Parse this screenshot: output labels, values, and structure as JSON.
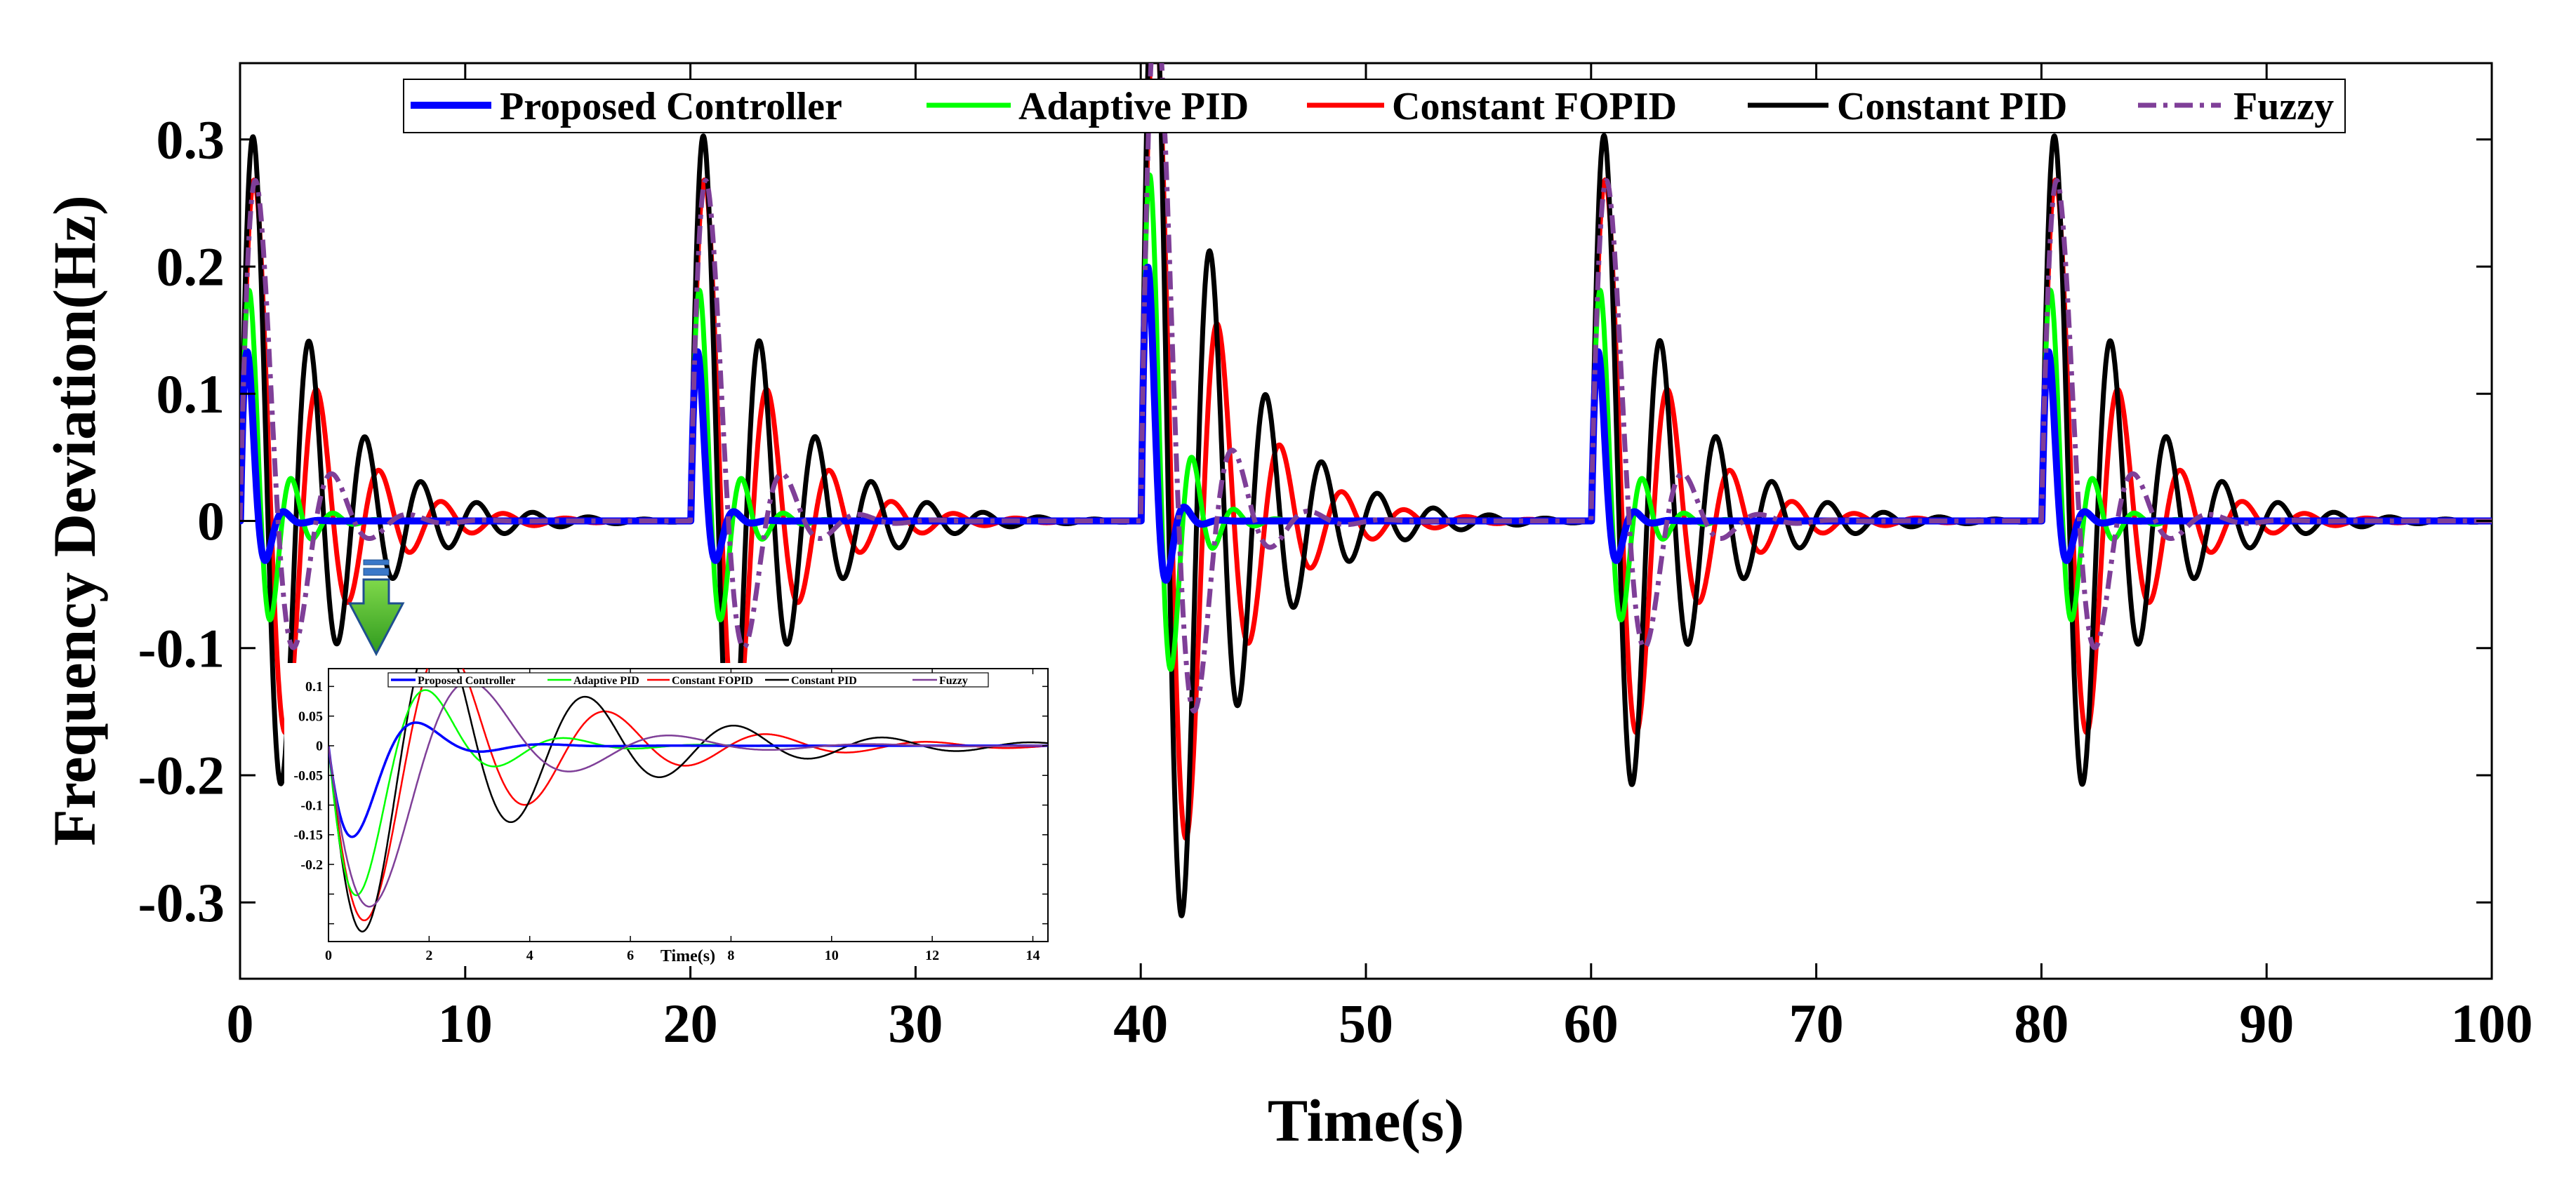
{
  "chart_data": {
    "type": "line",
    "main": {
      "xlabel": "Time(s)",
      "ylabel": "Frequency Deviation(Hz)",
      "xlim": [
        0,
        100
      ],
      "ylim": [
        -0.36,
        0.36
      ],
      "xticks": [
        0,
        10,
        20,
        30,
        40,
        50,
        60,
        70,
        80,
        90,
        100
      ],
      "yticks": [
        -0.3,
        -0.2,
        -0.1,
        0,
        0.1,
        0.2,
        0.3
      ],
      "xtick_labels": [
        "0",
        "10",
        "20",
        "30",
        "40",
        "50",
        "60",
        "70",
        "80",
        "90",
        "100"
      ],
      "ytick_labels": [
        "-0.3",
        "-0.2",
        "-0.1",
        "0",
        "0.1",
        "0.2",
        "0.3"
      ],
      "grid": false,
      "legend_position": "top-center",
      "events": [
        {
          "t": 0,
          "dir": -1
        },
        {
          "t": 20,
          "dir": 1
        },
        {
          "t": 40,
          "dir": -1.5
        },
        {
          "t": 60,
          "dir": 1
        },
        {
          "t": 80,
          "dir": -1
        }
      ],
      "series": [
        {
          "name": "Proposed Controller",
          "color": "#0000ff",
          "dash": "solid",
          "peak": 0.12,
          "omega": 4.3,
          "zeta": 0.42,
          "step_offset": 0.02
        },
        {
          "name": "Adaptive PID",
          "color": "#00ff00",
          "dash": "solid",
          "peak": 0.175,
          "omega": 3.5,
          "zeta": 0.26,
          "step_offset": 0.012
        },
        {
          "name": "Constant FOPID",
          "color": "#ff0000",
          "dash": "solid",
          "peak": 0.265,
          "omega": 2.3,
          "zeta": 0.15,
          "step_offset": 0.0
        },
        {
          "name": "Constant PID",
          "color": "#000000",
          "dash": "solid",
          "peak": 0.3,
          "omega": 2.55,
          "zeta": 0.12,
          "step_offset": 0.0
        },
        {
          "name": "Fuzzy",
          "color": "#7f3f98",
          "dash": "dashdot",
          "peak": 0.255,
          "omega": 1.95,
          "zeta": 0.3,
          "step_offset": 0.0
        }
      ]
    },
    "inset": {
      "xlabel": "Time(s)",
      "xlim": [
        0,
        14.3
      ],
      "ylim": [
        -0.33,
        0.13
      ],
      "xticks": [
        0,
        2,
        4,
        6,
        8,
        10,
        12,
        14
      ],
      "yticks": [
        -0.3,
        -0.25,
        -0.2,
        -0.15,
        -0.1,
        -0.05,
        0,
        0.05,
        0.1
      ],
      "xtick_labels": [
        "0",
        "2",
        "4",
        "6",
        "8",
        "10",
        "12",
        "14"
      ],
      "ytick_labels": [
        "",
        "",
        "-0.2",
        "-0.15",
        "-0.1",
        "-0.05",
        "0",
        "0.05",
        "0.1"
      ],
      "legend_position": "top",
      "series": [
        {
          "name": "Proposed Controller",
          "color": "#0000ff",
          "dash": "solid",
          "peak": 0.14,
          "omega": 2.7,
          "zeta": 0.4
        },
        {
          "name": "Adaptive PID",
          "color": "#00ff00",
          "dash": "solid",
          "peak": 0.24,
          "omega": 2.4,
          "zeta": 0.3
        },
        {
          "name": "Constant FOPID",
          "color": "#ff0000",
          "dash": "solid",
          "peak": 0.29,
          "omega": 2.0,
          "zeta": 0.17
        },
        {
          "name": "Constant PID",
          "color": "#000000",
          "dash": "solid",
          "peak": 0.31,
          "omega": 2.15,
          "zeta": 0.14
        },
        {
          "name": "Fuzzy",
          "color": "#7f3f98",
          "dash": "solid",
          "peak": 0.26,
          "omega": 1.65,
          "zeta": 0.28
        }
      ]
    }
  }
}
